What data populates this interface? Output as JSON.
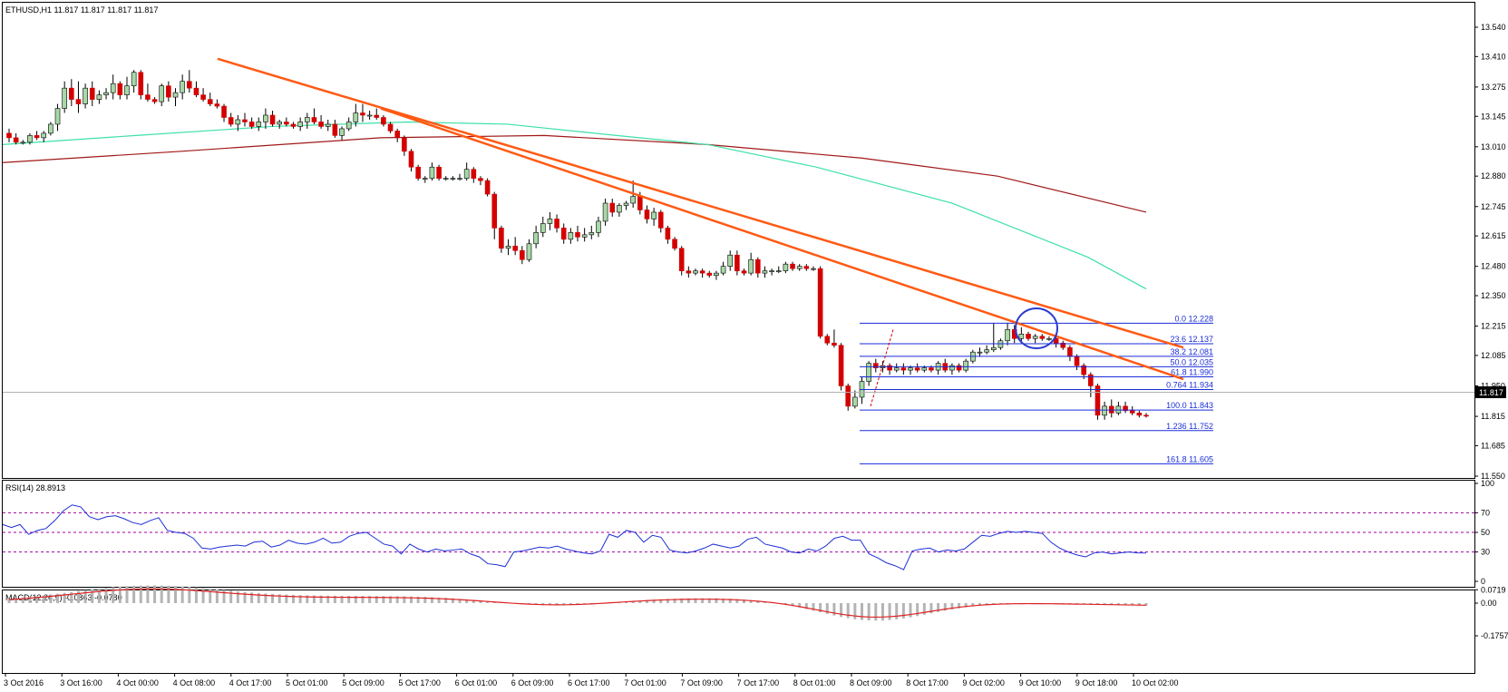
{
  "header": {
    "symbol_info": "ETHUSD,H1  11.817 11.817 11.817 11.817"
  },
  "price_axis": {
    "ticks": [
      "13.540",
      "13.410",
      "13.275",
      "13.145",
      "13.010",
      "12.880",
      "12.745",
      "12.615",
      "12.480",
      "12.350",
      "12.215",
      "12.085",
      "11.950",
      "11.815",
      "11.685",
      "11.550"
    ],
    "current_price": "11.817"
  },
  "time_axis": {
    "labels": [
      "3 Oct 2016",
      "3 Oct 16:00",
      "4 Oct 00:00",
      "4 Oct 08:00",
      "4 Oct 17:00",
      "5 Oct 01:00",
      "5 Oct 09:00",
      "5 Oct 17:00",
      "6 Oct 01:00",
      "6 Oct 09:00",
      "6 Oct 17:00",
      "7 Oct 01:00",
      "7 Oct 09:00",
      "7 Oct 17:00",
      "8 Oct 01:00",
      "8 Oct 09:00",
      "8 Oct 17:00",
      "9 Oct 02:00",
      "9 Oct 10:00",
      "9 Oct 18:00",
      "10 Oct 02:00"
    ]
  },
  "fibonacci": [
    {
      "label": "0.0  12.228"
    },
    {
      "label": "23.6  12.137"
    },
    {
      "label": "38.2  12.081"
    },
    {
      "label": "50.0  12.035"
    },
    {
      "label": "61.8  11.990"
    },
    {
      "label": "0.764  11.934"
    },
    {
      "label": "100.0  11.843"
    },
    {
      "label": "1.236  11.752"
    },
    {
      "label": "161.8  11.605"
    }
  ],
  "rsi_panel": {
    "title": "RSI(14) 28.8913",
    "ticks": [
      "100",
      "70",
      "50",
      "30",
      "0"
    ]
  },
  "macd_panel": {
    "title": "MACD(12,26,9) -0.0863 -0.0780",
    "ticks": [
      "0.0719",
      "0.00",
      "-0.1757"
    ]
  },
  "colors": {
    "bull_candle": "#a8d8a8",
    "bear_candle": "#d40000",
    "ma_fast": "#3ee0a8",
    "ma_slow": "#a01818",
    "trendline": "#ff5a14",
    "fib": "#1a2dd8",
    "rsi_line": "#1c2fd6",
    "rsi_levels": "#a000a0",
    "macd_signal": "#e02020",
    "macd_hist": "#b4b4b4",
    "highlight_circle": "#2a3cd0"
  },
  "chart_data": {
    "type": "candlestick",
    "symbol": "ETHUSD",
    "timeframe": "H1",
    "y_range": [
      11.55,
      13.54
    ],
    "candles": [
      [
        13.07,
        13.09,
        13.03,
        13.05
      ],
      [
        13.05,
        13.07,
        13.02,
        13.03
      ],
      [
        13.03,
        13.04,
        13.02,
        13.03
      ],
      [
        13.03,
        13.07,
        13.02,
        13.06
      ],
      [
        13.06,
        13.08,
        13.04,
        13.05
      ],
      [
        13.05,
        13.08,
        13.03,
        13.07
      ],
      [
        13.07,
        13.12,
        13.06,
        13.11
      ],
      [
        13.11,
        13.2,
        13.08,
        13.18
      ],
      [
        13.18,
        13.3,
        13.16,
        13.27
      ],
      [
        13.27,
        13.31,
        13.19,
        13.22
      ],
      [
        13.22,
        13.3,
        13.16,
        13.2
      ],
      [
        13.2,
        13.29,
        13.18,
        13.27
      ],
      [
        13.27,
        13.3,
        13.19,
        13.22
      ],
      [
        13.22,
        13.26,
        13.2,
        13.24
      ],
      [
        13.24,
        13.27,
        13.22,
        13.25
      ],
      [
        13.25,
        13.33,
        13.22,
        13.29
      ],
      [
        13.29,
        13.3,
        13.22,
        13.24
      ],
      [
        13.24,
        13.32,
        13.22,
        13.28
      ],
      [
        13.28,
        13.35,
        13.25,
        13.34
      ],
      [
        13.34,
        13.35,
        13.22,
        13.24
      ],
      [
        13.24,
        13.29,
        13.21,
        13.22
      ],
      [
        13.22,
        13.23,
        13.2,
        13.21
      ],
      [
        13.21,
        13.29,
        13.19,
        13.28
      ],
      [
        13.28,
        13.3,
        13.21,
        13.23
      ],
      [
        13.23,
        13.27,
        13.19,
        13.25
      ],
      [
        13.25,
        13.33,
        13.22,
        13.3
      ],
      [
        13.3,
        13.35,
        13.25,
        13.27
      ],
      [
        13.27,
        13.3,
        13.23,
        13.24
      ],
      [
        13.24,
        13.27,
        13.21,
        13.22
      ],
      [
        13.22,
        13.25,
        13.19,
        13.2
      ],
      [
        13.2,
        13.22,
        13.18,
        13.19
      ],
      [
        13.19,
        13.2,
        13.12,
        13.14
      ],
      [
        13.14,
        13.16,
        13.1,
        13.11
      ],
      [
        13.11,
        13.15,
        13.08,
        13.13
      ],
      [
        13.13,
        13.16,
        13.1,
        13.12
      ],
      [
        13.12,
        13.14,
        13.09,
        13.1
      ],
      [
        13.1,
        13.14,
        13.08,
        13.12
      ],
      [
        13.12,
        13.18,
        13.09,
        13.15
      ],
      [
        13.15,
        13.17,
        13.1,
        13.11
      ],
      [
        13.11,
        13.13,
        13.09,
        13.12
      ],
      [
        13.12,
        13.14,
        13.1,
        13.11
      ],
      [
        13.11,
        13.12,
        13.09,
        13.1
      ],
      [
        13.1,
        13.14,
        13.08,
        13.12
      ],
      [
        13.12,
        13.16,
        13.09,
        13.14
      ],
      [
        13.14,
        13.18,
        13.11,
        13.12
      ],
      [
        13.12,
        13.15,
        13.09,
        13.1
      ],
      [
        13.1,
        13.13,
        13.08,
        13.11
      ],
      [
        13.11,
        13.13,
        13.05,
        13.06
      ],
      [
        13.06,
        13.1,
        13.04,
        13.09
      ],
      [
        13.09,
        13.14,
        13.08,
        13.12
      ],
      [
        13.12,
        13.2,
        13.1,
        13.16
      ],
      [
        13.16,
        13.2,
        13.12,
        13.15
      ],
      [
        13.15,
        13.17,
        13.13,
        13.15
      ],
      [
        13.15,
        13.18,
        13.13,
        13.14
      ],
      [
        13.14,
        13.15,
        13.1,
        13.11
      ],
      [
        13.11,
        13.12,
        13.07,
        13.08
      ],
      [
        13.08,
        13.09,
        13.03,
        13.05
      ],
      [
        13.05,
        13.06,
        12.97,
        12.99
      ],
      [
        12.99,
        13.0,
        12.9,
        12.92
      ],
      [
        12.92,
        12.93,
        12.86,
        12.87
      ],
      [
        12.87,
        12.88,
        12.85,
        12.87
      ],
      [
        12.87,
        12.94,
        12.86,
        12.92
      ],
      [
        12.92,
        12.93,
        12.86,
        12.87
      ],
      [
        12.87,
        12.88,
        12.86,
        12.87
      ],
      [
        12.87,
        12.88,
        12.86,
        12.87
      ],
      [
        12.87,
        12.89,
        12.86,
        12.87
      ],
      [
        12.87,
        12.94,
        12.86,
        12.91
      ],
      [
        12.91,
        12.92,
        12.85,
        12.87
      ],
      [
        12.87,
        12.88,
        12.84,
        12.86
      ],
      [
        12.86,
        12.87,
        12.79,
        12.8
      ],
      [
        12.8,
        12.81,
        12.6,
        12.65
      ],
      [
        12.65,
        12.66,
        12.54,
        12.56
      ],
      [
        12.56,
        12.6,
        12.53,
        12.57
      ],
      [
        12.57,
        12.61,
        12.53,
        12.55
      ],
      [
        12.55,
        12.57,
        12.49,
        12.51
      ],
      [
        12.51,
        12.6,
        12.5,
        12.58
      ],
      [
        12.58,
        12.66,
        12.56,
        12.63
      ],
      [
        12.63,
        12.7,
        12.61,
        12.67
      ],
      [
        12.67,
        12.72,
        12.64,
        12.69
      ],
      [
        12.69,
        12.71,
        12.63,
        12.65
      ],
      [
        12.65,
        12.67,
        12.58,
        12.6
      ],
      [
        12.6,
        12.65,
        12.58,
        12.63
      ],
      [
        12.63,
        12.66,
        12.59,
        12.61
      ],
      [
        12.61,
        12.65,
        12.59,
        12.62
      ],
      [
        12.62,
        12.66,
        12.6,
        12.63
      ],
      [
        12.63,
        12.7,
        12.61,
        12.68
      ],
      [
        12.68,
        12.78,
        12.66,
        12.76
      ],
      [
        12.76,
        12.78,
        12.7,
        12.72
      ],
      [
        12.72,
        12.76,
        12.7,
        12.75
      ],
      [
        12.75,
        12.77,
        12.73,
        12.76
      ],
      [
        12.76,
        12.86,
        12.74,
        12.79
      ],
      [
        12.79,
        12.81,
        12.71,
        12.73
      ],
      [
        12.73,
        12.75,
        12.67,
        12.69
      ],
      [
        12.69,
        12.74,
        12.66,
        12.72
      ],
      [
        12.72,
        12.73,
        12.63,
        12.65
      ],
      [
        12.65,
        12.66,
        12.58,
        12.6
      ],
      [
        12.6,
        12.61,
        12.55,
        12.56
      ],
      [
        12.56,
        12.57,
        12.44,
        12.46
      ],
      [
        12.46,
        12.48,
        12.43,
        12.45
      ],
      [
        12.45,
        12.47,
        12.44,
        12.46
      ],
      [
        12.46,
        12.47,
        12.43,
        12.45
      ],
      [
        12.45,
        12.46,
        12.43,
        12.44
      ],
      [
        12.44,
        12.46,
        12.42,
        12.45
      ],
      [
        12.45,
        12.5,
        12.44,
        12.48
      ],
      [
        12.48,
        12.55,
        12.46,
        12.53
      ],
      [
        12.53,
        12.55,
        12.44,
        12.46
      ],
      [
        12.46,
        12.47,
        12.44,
        12.45
      ],
      [
        12.45,
        12.54,
        12.44,
        12.51
      ],
      [
        12.51,
        12.52,
        12.43,
        12.45
      ],
      [
        12.45,
        12.48,
        12.43,
        12.46
      ],
      [
        12.46,
        12.47,
        12.44,
        12.46
      ],
      [
        12.46,
        12.48,
        12.45,
        12.46
      ],
      [
        12.46,
        12.5,
        12.45,
        12.49
      ],
      [
        12.49,
        12.5,
        12.46,
        12.47
      ],
      [
        12.47,
        12.49,
        12.46,
        12.48
      ],
      [
        12.48,
        12.49,
        12.46,
        12.47
      ],
      [
        12.47,
        12.48,
        12.46,
        12.47
      ],
      [
        12.47,
        12.48,
        12.16,
        12.17
      ],
      [
        12.17,
        12.18,
        12.13,
        12.14
      ],
      [
        12.14,
        12.2,
        12.12,
        12.13
      ],
      [
        12.13,
        12.14,
        11.93,
        11.95
      ],
      [
        11.95,
        11.96,
        11.84,
        11.86
      ],
      [
        11.86,
        11.93,
        11.85,
        11.9
      ],
      [
        11.9,
        11.99,
        11.87,
        11.97
      ],
      [
        11.97,
        12.06,
        11.95,
        12.05
      ],
      [
        12.05,
        12.07,
        12.01,
        12.03
      ],
      [
        12.03,
        12.06,
        12.01,
        12.04
      ],
      [
        12.04,
        12.05,
        12.0,
        12.02
      ],
      [
        12.02,
        12.05,
        12.01,
        12.03
      ],
      [
        12.03,
        12.05,
        12.0,
        12.02
      ],
      [
        12.02,
        12.04,
        12.0,
        12.03
      ],
      [
        12.03,
        12.05,
        12.01,
        12.02
      ],
      [
        12.02,
        12.04,
        12.01,
        12.03
      ],
      [
        12.03,
        12.04,
        12.01,
        12.02
      ],
      [
        12.02,
        12.06,
        12.0,
        12.05
      ],
      [
        12.05,
        12.07,
        12.01,
        12.02
      ],
      [
        12.02,
        12.05,
        12.0,
        12.04
      ],
      [
        12.04,
        12.05,
        12.01,
        12.02
      ],
      [
        12.02,
        12.07,
        12.01,
        12.06
      ],
      [
        12.06,
        12.11,
        12.05,
        12.1
      ],
      [
        12.1,
        12.12,
        12.08,
        12.1
      ],
      [
        12.1,
        12.13,
        12.09,
        12.11
      ],
      [
        12.11,
        12.23,
        12.1,
        12.12
      ],
      [
        12.12,
        12.16,
        12.11,
        12.15
      ],
      [
        12.15,
        12.23,
        12.13,
        12.2
      ],
      [
        12.2,
        12.22,
        12.14,
        12.16
      ],
      [
        12.16,
        12.21,
        12.14,
        12.18
      ],
      [
        12.18,
        12.19,
        12.15,
        12.16
      ],
      [
        12.16,
        12.18,
        12.14,
        12.17
      ],
      [
        12.17,
        12.18,
        12.15,
        12.16
      ],
      [
        12.16,
        12.17,
        12.15,
        12.16
      ],
      [
        12.16,
        12.18,
        12.12,
        12.14
      ],
      [
        12.14,
        12.15,
        12.11,
        12.12
      ],
      [
        12.12,
        12.13,
        12.06,
        12.08
      ],
      [
        12.08,
        12.09,
        12.02,
        12.04
      ],
      [
        12.04,
        12.05,
        11.98,
        12.0
      ],
      [
        12.0,
        12.01,
        11.9,
        11.95
      ],
      [
        11.95,
        11.96,
        11.8,
        11.82
      ],
      [
        11.82,
        11.88,
        11.8,
        11.86
      ],
      [
        11.86,
        11.89,
        11.81,
        11.83
      ],
      [
        11.83,
        11.88,
        11.82,
        11.86
      ],
      [
        11.86,
        11.88,
        11.83,
        11.84
      ],
      [
        11.84,
        11.86,
        11.82,
        11.83
      ],
      [
        11.83,
        11.84,
        11.81,
        11.82
      ],
      [
        11.82,
        11.83,
        11.81,
        11.817
      ]
    ]
  }
}
